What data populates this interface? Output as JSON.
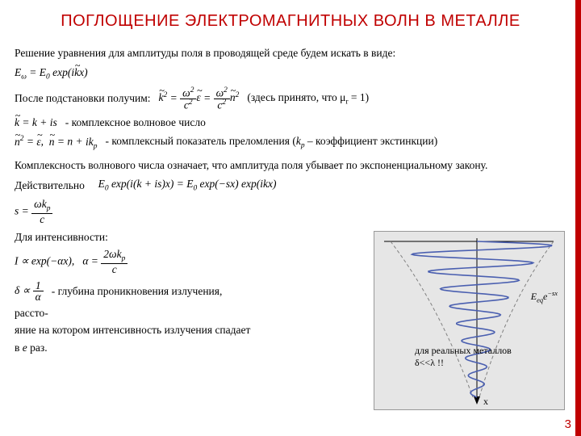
{
  "title": "ПОГЛОЩЕНИЕ ЭЛЕКТРОМАГНИТНЫХ ВОЛН В МЕТАЛЛЕ",
  "line1": "Решение уравнения для амплитуды поля в проводящей среде будем искать в виде:",
  "eq_field": "E_{ω} = E_0 exp(i k̃ x)",
  "after_sub_label": "После подстановки получим:",
  "mu_note": "(здесь принято, что μ_r = 1)",
  "eq_k2_lhs": "k̃² =",
  "eq_k2_rhs1_num": "ω²",
  "eq_k2_rhs1_den": "c²",
  "eq_k2_rhs1_tail": "ε̃",
  "eq_k2_rhs2_num": "ω²",
  "eq_k2_rhs2_den": "c²",
  "eq_k2_rhs2_tail": "ñ²",
  "wave_num_eq": "k̃ = k + is",
  "wave_num_label": "- комплексное волновое число",
  "n2_eq": "ñ² = ε̃,  ñ = n + ik_p",
  "n2_label": "- комплексный показатель преломления (k_p – коэффициент экстинкции)",
  "complex_note": "Комплексность волнового числа означает, что амплитуда поля убывает по экспоненциальному закону.",
  "indeed": "Действительно",
  "eq_exp": "E_0 exp(i(k + is)x) = E_0 exp(−sx) exp(ikx)",
  "s_eq_num": "ωk_p",
  "s_eq_den": "c",
  "intensity_label": "Для интенсивности:",
  "I_expr": "I ∝ exp(−αx),",
  "alpha_num": "2ωk_p",
  "alpha_den": "c",
  "delta_expr": "δ ∝ 1/α",
  "delta_label": "- глубина проникновения излучения,",
  "delta_tail1": "рассто-",
  "delta_tail2": "яние на котором интенсивность излучения спадает",
  "delta_tail3": "в e раз.",
  "diagram_caption": "для реальных металлов δ<<λ !!",
  "diagram_axis_x": "x",
  "diagram_env_label": "E_{eq}e^{−sx}",
  "pagenum": "3",
  "colors": {
    "accent": "#c00000",
    "diagram_bg": "#e6e6e6",
    "wave": "#4a5fb0",
    "envelope": "#808080",
    "axis": "#000"
  }
}
